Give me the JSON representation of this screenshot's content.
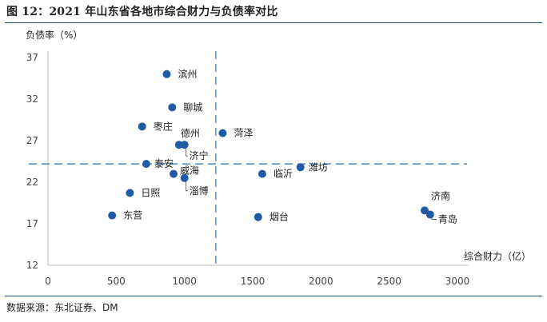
{
  "figure": {
    "title": "图 12：2021 年山东省各地市综合财力与负债率对比",
    "source": "数据来源：东北证券、DM"
  },
  "chart_data": {
    "type": "scatter",
    "xlabel": "综合财力（亿）",
    "ylabel": "负债率（%）",
    "xlim": [
      0,
      3000
    ],
    "ylim": [
      12,
      37
    ],
    "xticks": [
      0,
      500,
      1000,
      1500,
      2000,
      2500,
      3000
    ],
    "yticks": [
      12,
      17,
      22,
      27,
      32,
      37
    ],
    "grid": false,
    "colors": {
      "point": "#1f5aa6",
      "reference_line": "#2e6db4",
      "axis": "#bfbfbf"
    },
    "reference_lines": {
      "x": 1230,
      "y": 24.2
    },
    "points": [
      {
        "name": "滨州",
        "x": 870,
        "y": 35.0
      },
      {
        "name": "聊城",
        "x": 910,
        "y": 31.0
      },
      {
        "name": "枣庄",
        "x": 690,
        "y": 28.7
      },
      {
        "name": "德州",
        "x": 960,
        "y": 26.5
      },
      {
        "name": "济宁",
        "x": 1000,
        "y": 26.5
      },
      {
        "name": "菏泽",
        "x": 1280,
        "y": 27.9
      },
      {
        "name": "泰安",
        "x": 720,
        "y": 24.2
      },
      {
        "name": "威海",
        "x": 920,
        "y": 23.0
      },
      {
        "name": "淄博",
        "x": 1000,
        "y": 22.5
      },
      {
        "name": "临沂",
        "x": 1570,
        "y": 23.0
      },
      {
        "name": "潍坊",
        "x": 1850,
        "y": 23.8
      },
      {
        "name": "日照",
        "x": 600,
        "y": 20.7
      },
      {
        "name": "东营",
        "x": 470,
        "y": 18.0
      },
      {
        "name": "烟台",
        "x": 1540,
        "y": 17.8
      },
      {
        "name": "济南",
        "x": 2760,
        "y": 18.6
      },
      {
        "name": "青岛",
        "x": 2800,
        "y": 18.1
      }
    ]
  }
}
